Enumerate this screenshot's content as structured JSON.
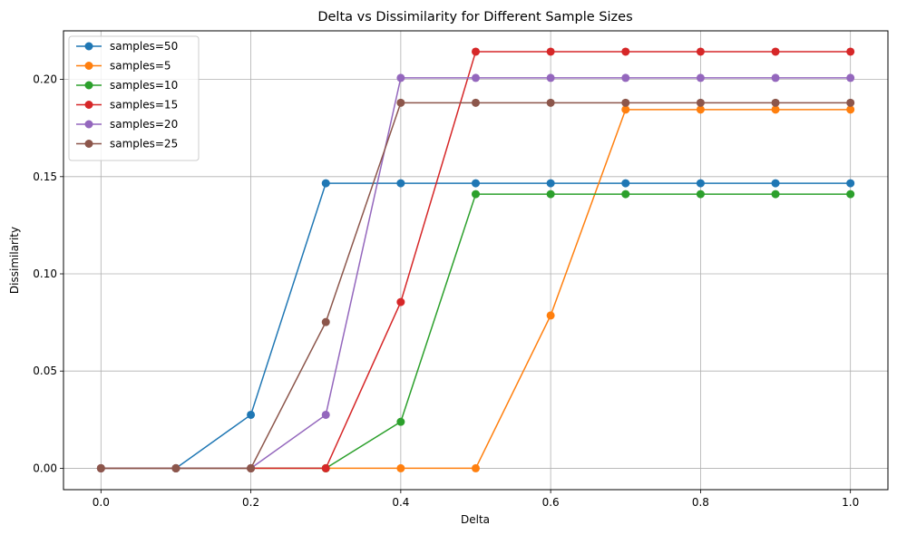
{
  "chart_data": {
    "type": "line",
    "title": "Delta vs Dissimilarity for Different Sample Sizes",
    "xlabel": "Delta",
    "ylabel": "Dissimilarity",
    "xlim": [
      -0.05,
      1.05
    ],
    "ylim": [
      -0.011,
      0.225
    ],
    "xticks": [
      0.0,
      0.2,
      0.4,
      0.6,
      0.8,
      1.0
    ],
    "xtick_labels": [
      "0.0",
      "0.2",
      "0.4",
      "0.6",
      "0.8",
      "1.0"
    ],
    "yticks": [
      0.0,
      0.05,
      0.1,
      0.15,
      0.2
    ],
    "ytick_labels": [
      "0.00",
      "0.05",
      "0.10",
      "0.15",
      "0.20"
    ],
    "grid": true,
    "legend_position": "top-left",
    "marker": "circle",
    "x": [
      0.0,
      0.1,
      0.2,
      0.3,
      0.4,
      0.5,
      0.6,
      0.7,
      0.8,
      0.9,
      1.0
    ],
    "series": [
      {
        "name": "samples=50",
        "color": "#1f77b4",
        "values": [
          0.0,
          0.0,
          0.0275,
          0.1466,
          0.1466,
          0.1466,
          0.1466,
          0.1466,
          0.1466,
          0.1466,
          0.1466
        ]
      },
      {
        "name": "samples=5",
        "color": "#ff7f0e",
        "values": [
          0.0,
          0.0,
          0.0,
          0.0,
          0.0,
          0.0,
          0.0786,
          0.1845,
          0.1845,
          0.1845,
          0.1845
        ]
      },
      {
        "name": "samples=10",
        "color": "#2ca02c",
        "values": [
          0.0,
          0.0,
          0.0,
          0.0,
          0.0239,
          0.141,
          0.141,
          0.141,
          0.141,
          0.141,
          0.141
        ]
      },
      {
        "name": "samples=15",
        "color": "#d62728",
        "values": [
          0.0,
          0.0,
          0.0,
          0.0,
          0.0855,
          0.2143,
          0.2143,
          0.2143,
          0.2143,
          0.2143,
          0.2143
        ]
      },
      {
        "name": "samples=20",
        "color": "#9467bd",
        "values": [
          0.0,
          0.0,
          0.0,
          0.0275,
          0.2008,
          0.2008,
          0.2008,
          0.2008,
          0.2008,
          0.2008,
          0.2008
        ]
      },
      {
        "name": "samples=25",
        "color": "#8c564b",
        "values": [
          0.0,
          0.0,
          0.0,
          0.0752,
          0.188,
          0.188,
          0.188,
          0.188,
          0.188,
          0.188,
          0.188
        ]
      }
    ]
  }
}
